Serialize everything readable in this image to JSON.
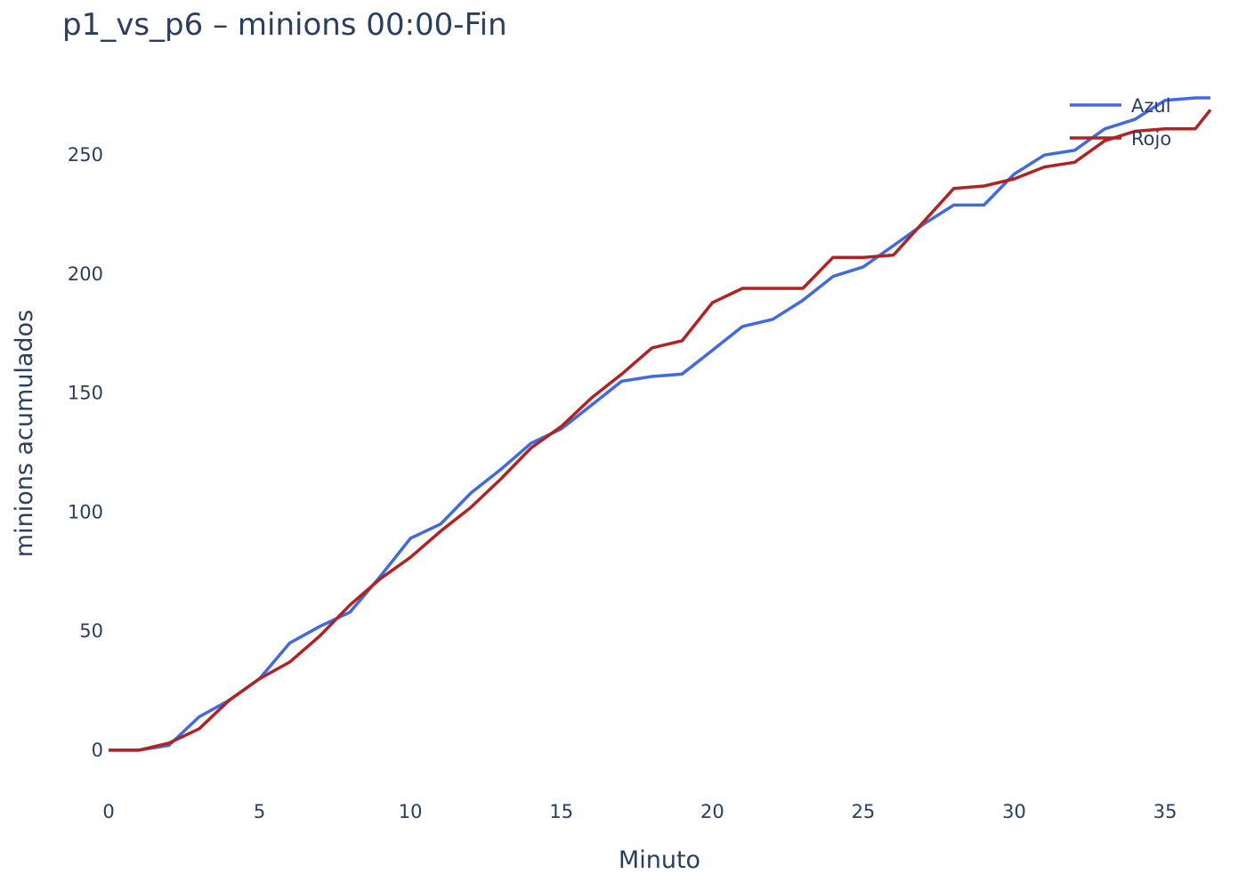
{
  "chart_data": {
    "type": "line",
    "title": "p1_vs_p6 – minions 00:00-Fin",
    "xlabel": "Minuto",
    "ylabel": "minions acumulados",
    "xlim": [
      0,
      36.5
    ],
    "ylim": [
      -15,
      280
    ],
    "x_ticks": [
      0,
      5,
      10,
      15,
      20,
      25,
      30,
      35
    ],
    "y_ticks": [
      0,
      50,
      100,
      150,
      200,
      250
    ],
    "grid": false,
    "legend_position": "top-right",
    "series": [
      {
        "name": "Azul",
        "color": "#4169e1",
        "x": [
          0,
          1,
          2,
          3,
          4,
          5,
          6,
          7,
          8,
          9,
          10,
          11,
          12,
          13,
          14,
          15,
          16,
          17,
          18,
          19,
          20,
          21,
          22,
          23,
          24,
          25,
          26,
          27,
          28,
          29,
          30,
          31,
          32,
          33,
          34,
          35,
          36,
          36.5
        ],
        "y": [
          0,
          0,
          2,
          14,
          21,
          30,
          45,
          52,
          58,
          73,
          89,
          95,
          108,
          118,
          129,
          135,
          145,
          155,
          157,
          158,
          168,
          178,
          181,
          189,
          199,
          203,
          212,
          221,
          229,
          229,
          242,
          250,
          252,
          261,
          265,
          273,
          274,
          274
        ]
      },
      {
        "name": "Rojo",
        "color": "#b22222",
        "x": [
          0,
          1,
          2,
          3,
          4,
          5,
          6,
          7,
          8,
          9,
          10,
          11,
          12,
          13,
          14,
          15,
          16,
          17,
          18,
          19,
          20,
          21,
          22,
          23,
          24,
          25,
          26,
          27,
          28,
          29,
          30,
          31,
          32,
          33,
          34,
          35,
          36,
          36.5
        ],
        "y": [
          0,
          0,
          3,
          9,
          21,
          30,
          37,
          48,
          61,
          72,
          81,
          92,
          102,
          114,
          127,
          136,
          148,
          158,
          169,
          172,
          188,
          194,
          194,
          194,
          207,
          207,
          208,
          222,
          236,
          237,
          240,
          245,
          247,
          256,
          260,
          261,
          261,
          269
        ]
      }
    ]
  }
}
